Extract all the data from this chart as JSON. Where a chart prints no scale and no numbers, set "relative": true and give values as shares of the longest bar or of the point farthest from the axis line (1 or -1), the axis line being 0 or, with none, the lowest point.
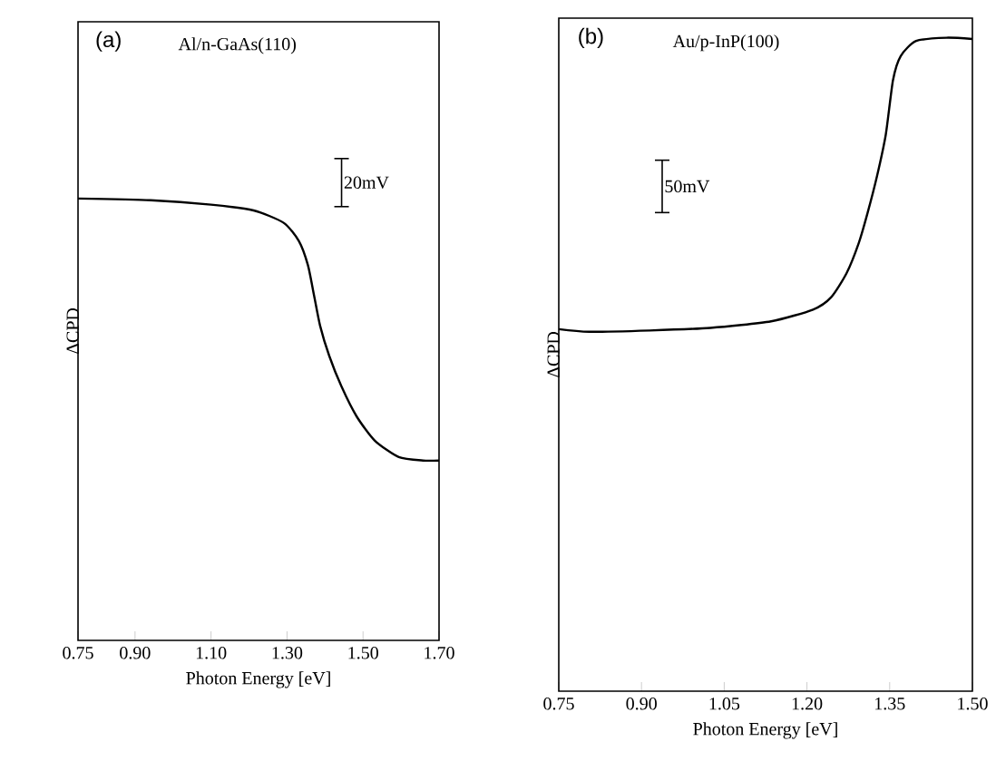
{
  "chart_data": [
    {
      "type": "line",
      "title": "(a)",
      "subtitle": "Al/n-GaAs(110)",
      "xlabel": "Photon Energy [eV]",
      "ylabel": "ΔCPD",
      "relative": true,
      "xlim": [
        0.75,
        1.7
      ],
      "xticks": [
        0.75,
        {
          "value": 0.9,
          "label": "0.90"
        },
        {
          "value": 1.1,
          "label": "1.10"
        },
        {
          "value": 1.3,
          "label": "1.30"
        },
        {
          "value": 1.5,
          "label": "1.50"
        },
        {
          "value": 1.7,
          "label": "1.70"
        }
      ],
      "tick_labels": "x",
      "annotations": [
        "20mV"
      ],
      "series": [
        {
          "color": "#000000",
          "x": [
            0.75,
            0.941,
            1.1,
            1.212,
            1.291,
            1.331,
            1.355,
            1.371,
            1.387,
            1.411,
            1.443,
            1.483,
            1.531,
            1.594,
            1.658,
            1.7
          ],
          "values": [
            1,
            0.996,
            0.986,
            0.973,
            0.945,
            0.904,
            0.849,
            0.781,
            0.712,
            0.644,
            0.575,
            0.507,
            0.452,
            0.415,
            0.407,
            0.407
          ]
        }
      ]
    },
    {
      "type": "line",
      "title": "(b)",
      "subtitle": "Au/p-InP(100)",
      "xlabel": "Photon Energy [eV]",
      "ylabel": "ΔCPD",
      "relative": true,
      "xlim": [
        0.75,
        1.5
      ],
      "xticks": [
        0.75,
        {
          "value": 0.9,
          "label": "0.90"
        },
        1.05,
        {
          "value": 1.2,
          "label": "1.20"
        },
        1.35,
        {
          "value": 1.5,
          "label": "1.50"
        }
      ],
      "tick_labels": "x",
      "annotations": [
        "50mV"
      ],
      "series": [
        {
          "color": "#000000",
          "x": [
            0.75,
            0.805,
            0.915,
            1.025,
            1.135,
            1.211,
            1.244,
            1.272,
            1.294,
            1.31,
            1.327,
            1.343,
            1.356,
            1.37,
            1.398,
            1.453,
            1.5
          ],
          "values": [
            0.554,
            0.55,
            0.552,
            0.556,
            0.566,
            0.584,
            0.603,
            0.64,
            0.686,
            0.732,
            0.788,
            0.852,
            0.935,
            0.972,
            0.995,
            1,
            0.998
          ]
        }
      ]
    }
  ]
}
